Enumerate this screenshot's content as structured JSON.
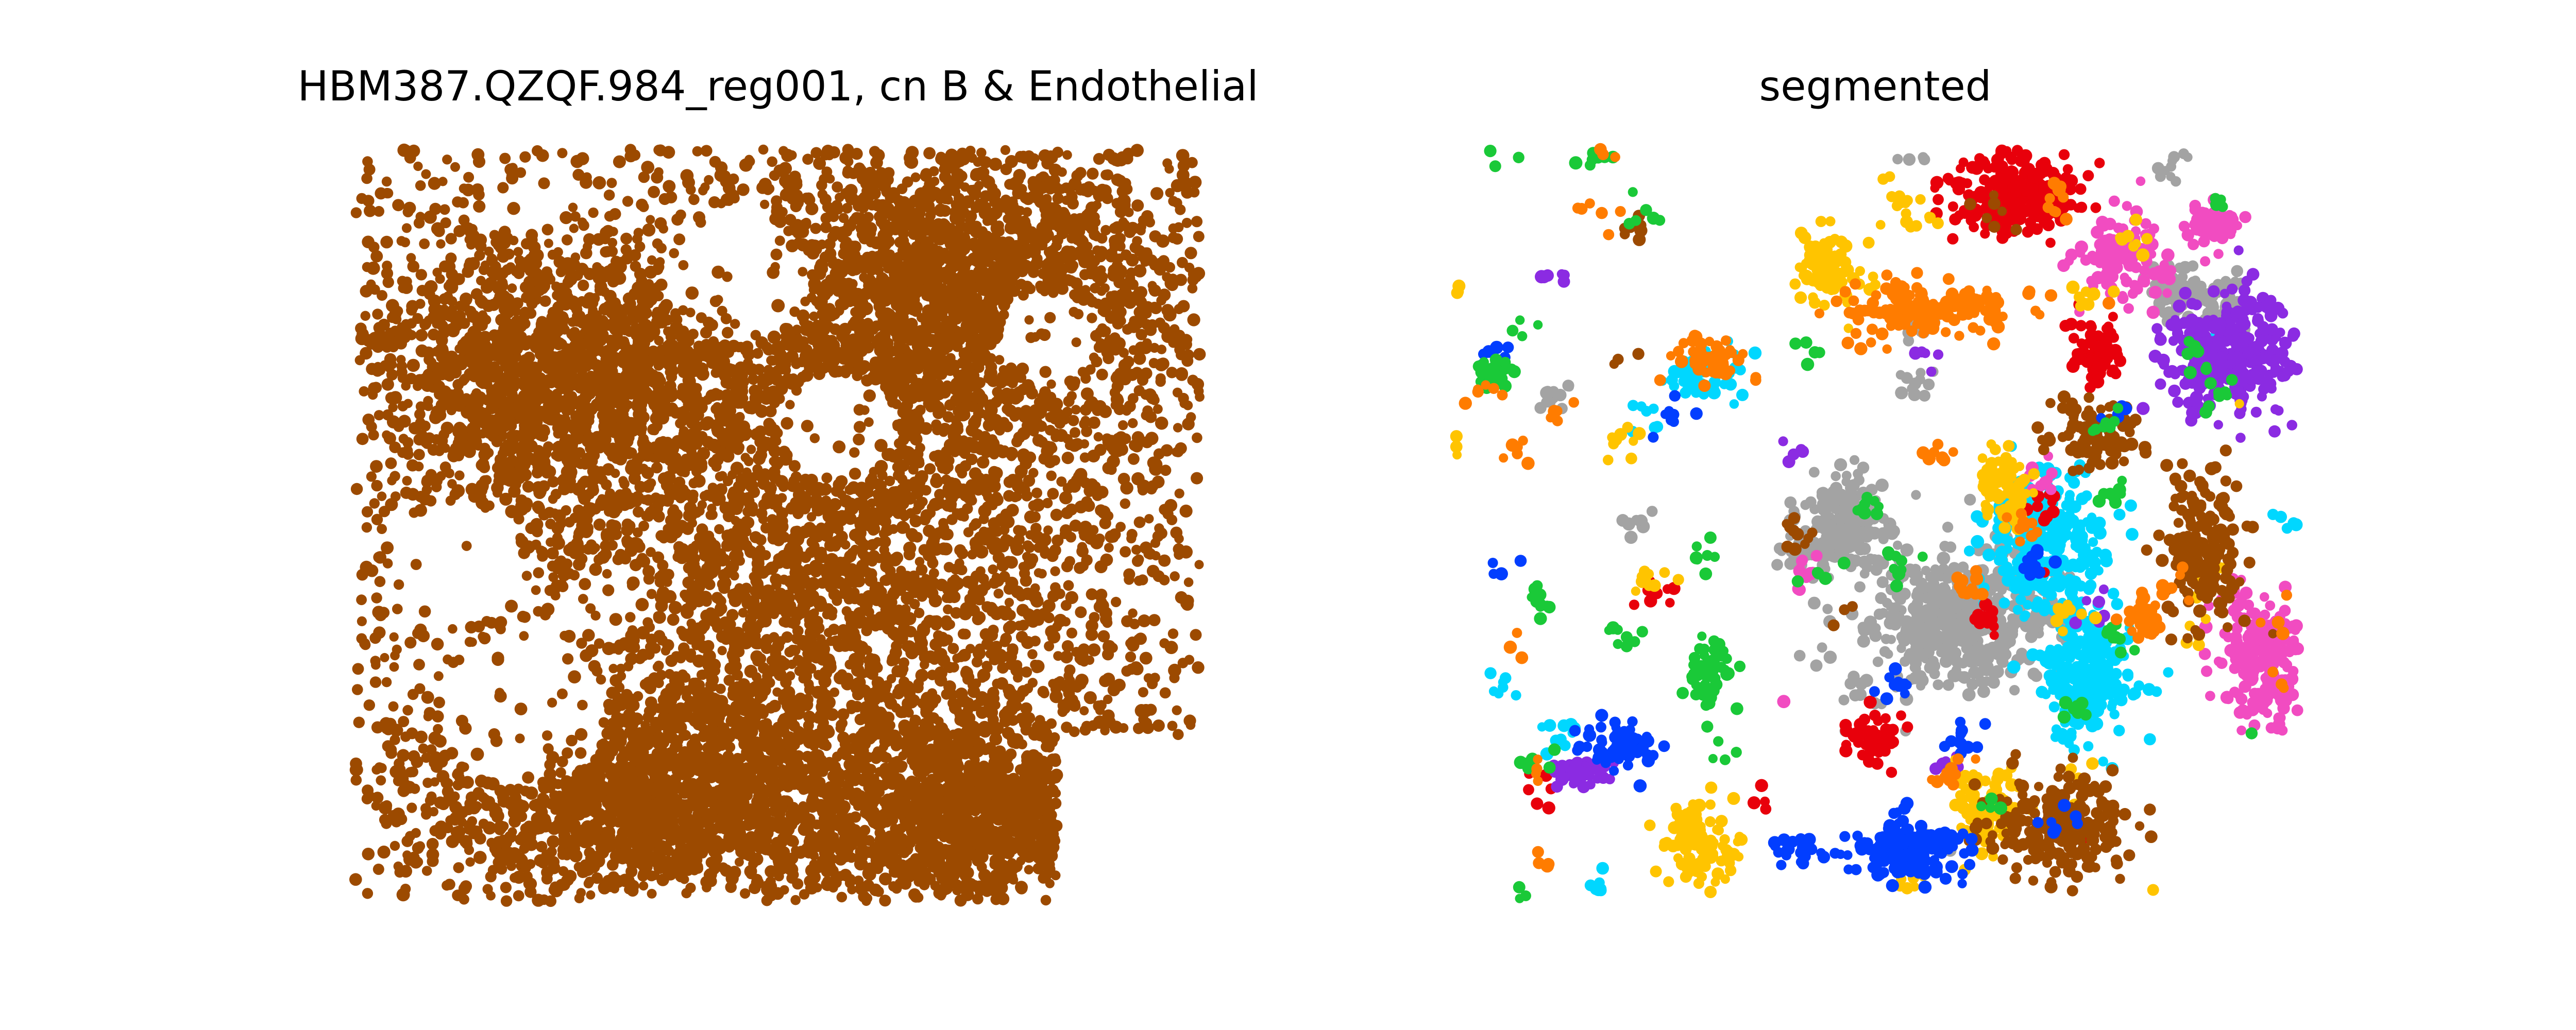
{
  "figure": {
    "left_title": "HBM387.QZQF.984_reg001, cn B & Endothelial",
    "right_title": "segmented"
  },
  "chart_data": [
    {
      "type": "scatter",
      "title": "HBM387.QZQF.984_reg001, cn B & Endothelial",
      "xlabel": "",
      "ylabel": "",
      "axes_visible": false,
      "grid": false,
      "legend": "none",
      "colors": [
        "#9c4a00"
      ],
      "series": [
        {
          "color": "#9c4a00",
          "approx_points": 9000,
          "density_regions": [
            {
              "x": 0.55,
              "y": 0.55,
              "rx": 0.35,
              "ry": 0.35,
              "w": 3.0
            },
            {
              "x": 0.72,
              "y": 0.18,
              "rx": 0.22,
              "ry": 0.18,
              "w": 2.0
            },
            {
              "x": 0.25,
              "y": 0.3,
              "rx": 0.2,
              "ry": 0.15,
              "w": 1.5
            },
            {
              "x": 0.35,
              "y": 0.85,
              "rx": 0.25,
              "ry": 0.12,
              "w": 1.5
            },
            {
              "x": 0.75,
              "y": 0.88,
              "rx": 0.18,
              "ry": 0.1,
              "w": 1.2
            }
          ],
          "gaps": [
            {
              "x": 0.2,
              "y": 0.75,
              "r": 0.1
            },
            {
              "x": 0.45,
              "y": 0.17,
              "r": 0.09
            },
            {
              "x": 0.57,
              "y": 0.37,
              "r": 0.07
            },
            {
              "x": 0.12,
              "y": 0.55,
              "r": 0.08
            },
            {
              "x": 0.82,
              "y": 0.25,
              "r": 0.06
            },
            {
              "x": 0.3,
              "y": 0.6,
              "r": 0.05
            },
            {
              "x": 0.92,
              "y": 0.95,
              "r": 0.09
            }
          ]
        }
      ]
    },
    {
      "type": "scatter",
      "title": "segmented",
      "xlabel": "",
      "ylabel": "",
      "axes_visible": false,
      "grid": false,
      "legend": "none",
      "colors": [
        "#e8000b",
        "#1ac938",
        "#023eff",
        "#ff7c00",
        "#f14cc1",
        "#8b2be2",
        "#9c4a00",
        "#a3a3a3",
        "#ffc400",
        "#00d7ff"
      ],
      "series": [
        {
          "color": "#a3a3a3",
          "approx_points": 900,
          "clusters": [
            {
              "x": 0.6,
              "y": 0.62,
              "rx": 0.1,
              "ry": 0.08,
              "n": 520
            },
            {
              "x": 0.46,
              "y": 0.5,
              "rx": 0.05,
              "ry": 0.06,
              "n": 200
            },
            {
              "x": 0.88,
              "y": 0.2,
              "rx": 0.05,
              "ry": 0.04,
              "n": 100
            }
          ]
        },
        {
          "color": "#00d7ff",
          "approx_points": 650,
          "clusters": [
            {
              "x": 0.7,
              "y": 0.52,
              "rx": 0.06,
              "ry": 0.09,
              "n": 300
            },
            {
              "x": 0.75,
              "y": 0.7,
              "rx": 0.05,
              "ry": 0.08,
              "n": 250
            },
            {
              "x": 0.3,
              "y": 0.3,
              "rx": 0.04,
              "ry": 0.03,
              "n": 60
            }
          ]
        },
        {
          "color": "#e8000b",
          "approx_points": 450,
          "clusters": [
            {
              "x": 0.67,
              "y": 0.06,
              "rx": 0.07,
              "ry": 0.05,
              "n": 260
            },
            {
              "x": 0.76,
              "y": 0.27,
              "rx": 0.03,
              "ry": 0.04,
              "n": 80
            },
            {
              "x": 0.5,
              "y": 0.78,
              "rx": 0.03,
              "ry": 0.03,
              "n": 60
            }
          ]
        },
        {
          "color": "#8b2be2",
          "approx_points": 380,
          "clusters": [
            {
              "x": 0.92,
              "y": 0.27,
              "rx": 0.07,
              "ry": 0.07,
              "n": 300
            },
            {
              "x": 0.15,
              "y": 0.83,
              "rx": 0.03,
              "ry": 0.02,
              "n": 40
            }
          ]
        },
        {
          "color": "#f14cc1",
          "approx_points": 420,
          "clusters": [
            {
              "x": 0.96,
              "y": 0.68,
              "rx": 0.05,
              "ry": 0.08,
              "n": 220
            },
            {
              "x": 0.79,
              "y": 0.14,
              "rx": 0.05,
              "ry": 0.05,
              "n": 120
            },
            {
              "x": 0.9,
              "y": 0.1,
              "rx": 0.03,
              "ry": 0.03,
              "n": 50
            }
          ]
        },
        {
          "color": "#ffc400",
          "approx_points": 480,
          "clusters": [
            {
              "x": 0.29,
              "y": 0.92,
              "rx": 0.04,
              "ry": 0.05,
              "n": 100
            },
            {
              "x": 0.44,
              "y": 0.16,
              "rx": 0.04,
              "ry": 0.04,
              "n": 100
            },
            {
              "x": 0.65,
              "y": 0.45,
              "rx": 0.03,
              "ry": 0.05,
              "n": 80
            },
            {
              "x": 0.63,
              "y": 0.88,
              "rx": 0.03,
              "ry": 0.05,
              "n": 80
            }
          ]
        },
        {
          "color": "#9c4a00",
          "approx_points": 560,
          "clusters": [
            {
              "x": 0.72,
              "y": 0.9,
              "rx": 0.08,
              "ry": 0.06,
              "n": 220
            },
            {
              "x": 0.89,
              "y": 0.53,
              "rx": 0.04,
              "ry": 0.1,
              "n": 180
            },
            {
              "x": 0.76,
              "y": 0.38,
              "rx": 0.05,
              "ry": 0.04,
              "n": 100
            }
          ]
        },
        {
          "color": "#023eff",
          "approx_points": 330,
          "clusters": [
            {
              "x": 0.54,
              "y": 0.93,
              "rx": 0.06,
              "ry": 0.04,
              "n": 180
            },
            {
              "x": 0.2,
              "y": 0.79,
              "rx": 0.04,
              "ry": 0.03,
              "n": 60
            }
          ]
        },
        {
          "color": "#1ac938",
          "approx_points": 250,
          "clusters": [
            {
              "x": 0.3,
              "y": 0.7,
              "rx": 0.03,
              "ry": 0.04,
              "n": 60
            },
            {
              "x": 0.05,
              "y": 0.3,
              "rx": 0.02,
              "ry": 0.02,
              "n": 30
            }
          ]
        },
        {
          "color": "#ff7c00",
          "approx_points": 350,
          "clusters": [
            {
              "x": 0.57,
              "y": 0.21,
              "rx": 0.1,
              "ry": 0.03,
              "n": 150
            },
            {
              "x": 0.3,
              "y": 0.28,
              "rx": 0.04,
              "ry": 0.03,
              "n": 50
            },
            {
              "x": 0.82,
              "y": 0.62,
              "rx": 0.02,
              "ry": 0.03,
              "n": 40
            }
          ]
        }
      ]
    }
  ]
}
